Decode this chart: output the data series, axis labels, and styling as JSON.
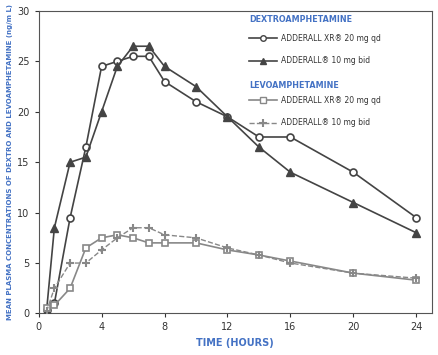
{
  "title": "",
  "xlabel": "TIME (HOURS)",
  "ylabel": "MEAN PLASMA CONCENTRATIONS OF DEXTRO AND LEVOAMPHETAMINE (ng/m L)",
  "xlim": [
    0,
    25
  ],
  "ylim": [
    0,
    30
  ],
  "xticks": [
    0,
    4,
    8,
    12,
    16,
    20,
    24
  ],
  "yticks": [
    0,
    5,
    10,
    15,
    20,
    25,
    30
  ],
  "dextro_xr_x": [
    0.5,
    1,
    2,
    3,
    4,
    5,
    6,
    7,
    8,
    10,
    12,
    14,
    16,
    20,
    24
  ],
  "dextro_xr_y": [
    0.3,
    1.0,
    9.5,
    16.5,
    24.5,
    25.0,
    25.5,
    25.5,
    23.0,
    21.0,
    19.5,
    17.5,
    17.5,
    14.0,
    9.5
  ],
  "dextro_bid_x": [
    0.5,
    1,
    2,
    3,
    4,
    5,
    6,
    7,
    8,
    10,
    12,
    14,
    16,
    20,
    24
  ],
  "dextro_bid_y": [
    0.2,
    8.5,
    15.0,
    15.5,
    20.0,
    24.5,
    26.5,
    26.5,
    24.5,
    22.5,
    19.5,
    16.5,
    14.0,
    11.0,
    8.0
  ],
  "levo_xr_x": [
    0.5,
    1,
    2,
    3,
    4,
    5,
    6,
    7,
    8,
    10,
    12,
    14,
    16,
    20,
    24
  ],
  "levo_xr_y": [
    0.5,
    0.8,
    2.5,
    6.5,
    7.5,
    7.8,
    7.5,
    7.0,
    7.0,
    7.0,
    6.3,
    5.8,
    5.2,
    4.0,
    3.3
  ],
  "levo_bid_x": [
    0.5,
    1,
    2,
    3,
    4,
    5,
    6,
    7,
    8,
    10,
    12,
    14,
    16,
    20,
    24
  ],
  "levo_bid_y": [
    0.2,
    2.5,
    5.0,
    5.0,
    6.3,
    7.5,
    8.5,
    8.5,
    7.8,
    7.5,
    6.5,
    5.8,
    5.0,
    4.0,
    3.5
  ],
  "legend_title_dextro": "DEXTROAMPHETAMINE",
  "legend_title_levo": "LEVOAMPHETAMINE",
  "legend_xr_dextro": "ADDERALL XR® 20 mg qd",
  "legend_bid_dextro": "ADDERALL® 10 mg bid",
  "legend_xr_levo": "ADDERALL XR® 20 mg qd",
  "legend_bid_levo": "ADDERALL® 10 mg bid",
  "color_dark": "#444444",
  "color_mid": "#888888",
  "legend_title_color": "#4472c4",
  "axis_label_color": "#4472c4"
}
